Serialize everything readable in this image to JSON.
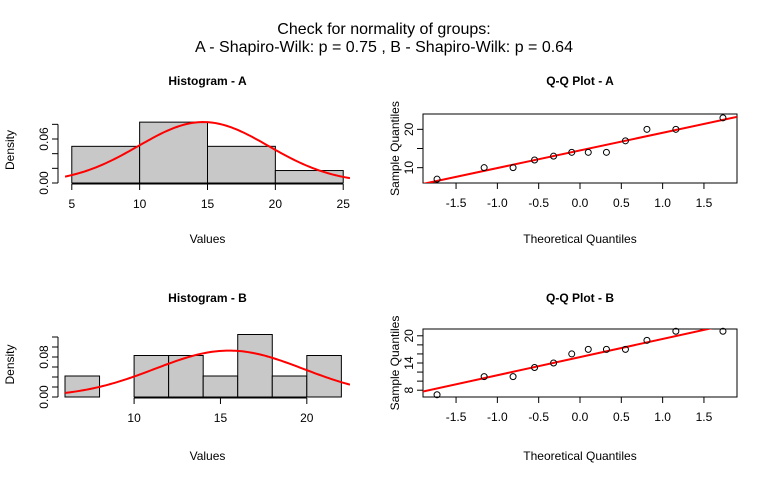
{
  "main_title": {
    "line1": "Check for normality of groups:",
    "line2": "A  - Shapiro-Wilk: p =  0.75 ,  B  - Shapiro-Wilk: p =  0.64"
  },
  "colors": {
    "bar_fill": "#c8c8c8",
    "curve": "#ff0000",
    "line": "#ff0000",
    "axis": "#000000"
  },
  "chart_data": [
    {
      "type": "bar",
      "id": "hist-a",
      "title": "Histogram - A",
      "xlabel": "Values",
      "ylabel": "Density",
      "bins": [
        [
          5,
          10
        ],
        [
          10,
          15
        ],
        [
          15,
          20
        ],
        [
          20,
          25
        ]
      ],
      "values": [
        0.05,
        0.083,
        0.05,
        0.017
      ],
      "xlim": [
        4.5,
        25.5
      ],
      "ylim": [
        0,
        0.09
      ],
      "xticks": [
        5,
        10,
        15,
        20,
        25
      ],
      "yticks": [
        0.0,
        0.02,
        0.04,
        0.06,
        0.08
      ],
      "ytick_labels": [
        "0.00",
        "",
        "",
        "0.06",
        ""
      ],
      "normal_curve": {
        "mean": 14.7,
        "sd": 4.8
      }
    },
    {
      "type": "scatter",
      "id": "qq-a",
      "title": "Q-Q Plot - A",
      "xlabel": "Theoretical Quantiles",
      "ylabel": "Sample Quantiles",
      "x": [
        -1.73,
        -1.16,
        -0.81,
        -0.55,
        -0.32,
        -0.1,
        0.1,
        0.32,
        0.55,
        0.81,
        1.16,
        1.73
      ],
      "y": [
        7,
        10,
        10,
        12,
        13,
        14,
        14,
        14,
        17,
        20,
        20,
        23
      ],
      "xlim": [
        -1.9,
        1.9
      ],
      "ylim": [
        6,
        24
      ],
      "xticks": [
        -1.5,
        -1.0,
        -0.5,
        0.0,
        0.5,
        1.0,
        1.5
      ],
      "xtick_labels": [
        "-1.5",
        "-1.0",
        "-0.5",
        "0.0",
        "0.5",
        "1.0",
        "1.5"
      ],
      "yticks": [
        10,
        15,
        20
      ],
      "ytick_labels": [
        "10",
        "",
        "20"
      ],
      "qq_line": {
        "intercept": 14.5,
        "slope": 4.6
      }
    },
    {
      "type": "bar",
      "id": "hist-b",
      "title": "Histogram - B",
      "xlabel": "Values",
      "ylabel": "Density",
      "bins": [
        [
          6,
          8
        ],
        [
          8,
          10
        ],
        [
          10,
          12
        ],
        [
          12,
          14
        ],
        [
          14,
          16
        ],
        [
          16,
          18
        ],
        [
          18,
          20
        ],
        [
          20,
          22
        ]
      ],
      "values": [
        0.042,
        0.0,
        0.083,
        0.083,
        0.042,
        0.125,
        0.042,
        0.083
      ],
      "xlim": [
        6,
        22.5
      ],
      "ylim": [
        0,
        0.13
      ],
      "xticks": [
        10,
        15,
        20
      ],
      "yticks": [
        0.0,
        0.02,
        0.04,
        0.06,
        0.08,
        0.1,
        0.12
      ],
      "ytick_labels": [
        "0.00",
        "",
        "",
        "",
        "0.08",
        "",
        ""
      ],
      "normal_curve": {
        "mean": 15.5,
        "sd": 4.3
      }
    },
    {
      "type": "scatter",
      "id": "qq-b",
      "title": "Q-Q Plot - B",
      "xlabel": "Theoretical Quantiles",
      "ylabel": "Sample Quantiles",
      "x": [
        -1.73,
        -1.16,
        -0.81,
        -0.55,
        -0.32,
        -0.1,
        0.1,
        0.32,
        0.55,
        0.81,
        1.16,
        1.73
      ],
      "y": [
        7,
        11,
        11,
        13,
        14,
        16,
        17,
        17,
        17,
        19,
        21,
        21
      ],
      "xlim": [
        -1.9,
        1.9
      ],
      "ylim": [
        6.5,
        21.5
      ],
      "xticks": [
        -1.5,
        -1.0,
        -0.5,
        0.0,
        0.5,
        1.0,
        1.5
      ],
      "xtick_labels": [
        "-1.5",
        "-1.0",
        "-0.5",
        "0.0",
        "0.5",
        "1.0",
        "1.5"
      ],
      "yticks": [
        8,
        10,
        12,
        14,
        16,
        18,
        20
      ],
      "ytick_labels": [
        "8",
        "",
        "",
        "14",
        "",
        "",
        "20"
      ],
      "qq_line": {
        "intercept": 15.3,
        "slope": 4.0
      }
    }
  ]
}
